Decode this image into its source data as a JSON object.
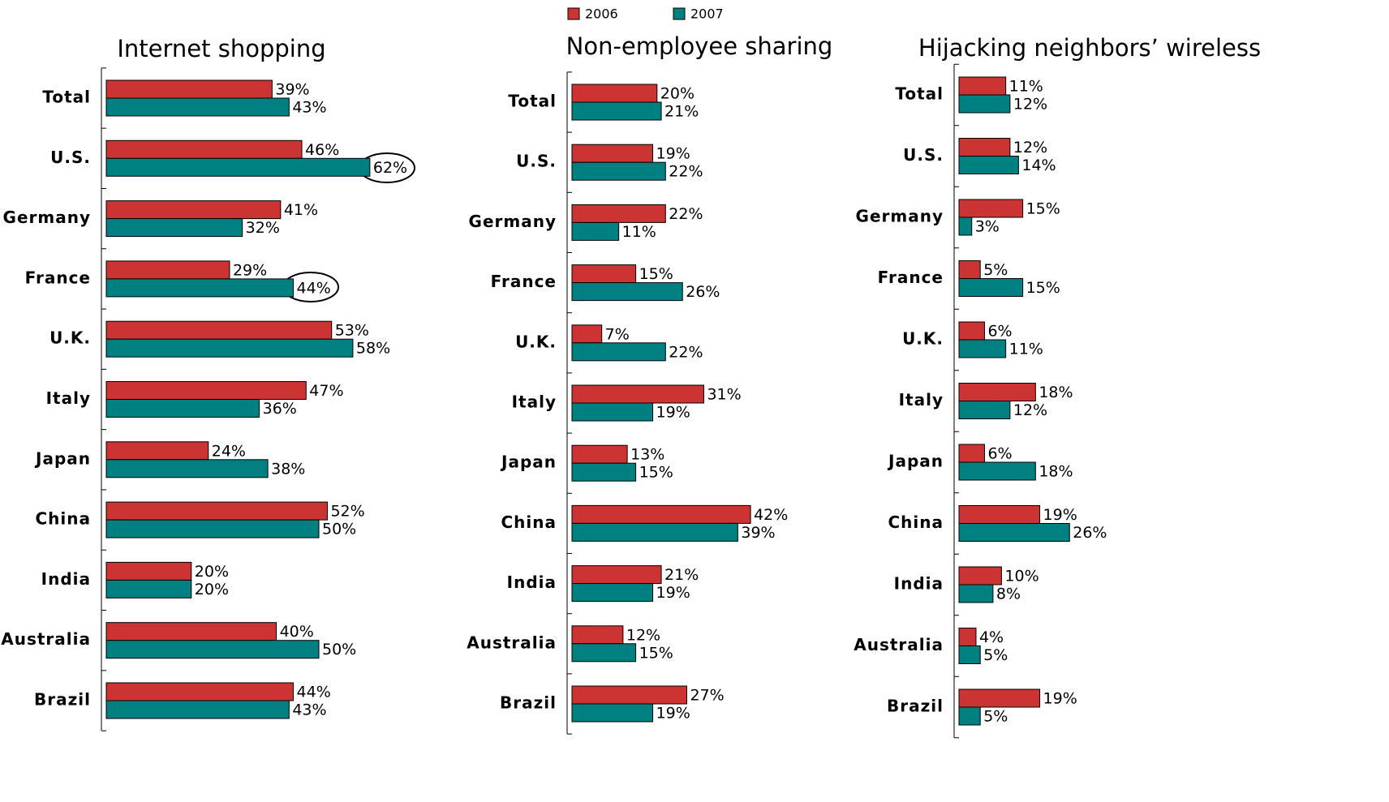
{
  "chart_data": [
    {
      "type": "bar",
      "orientation": "horizontal",
      "title": "Internet shopping",
      "categories": [
        "Total",
        "U.S.",
        "Germany",
        "France",
        "U.K.",
        "Italy",
        "Japan",
        "China",
        "India",
        "Australia",
        "Brazil"
      ],
      "series": [
        {
          "name": "2006",
          "color": "#cc3333",
          "values": [
            39,
            46,
            41,
            29,
            53,
            47,
            24,
            52,
            20,
            40,
            44
          ],
          "value_labels": [
            "39%",
            "46%",
            "41%",
            "29%",
            "53%",
            "47%",
            "24%",
            "52%",
            "20%",
            "40%",
            "44%"
          ]
        },
        {
          "name": "2007",
          "color": "#008080",
          "values": [
            43,
            62,
            32,
            44,
            58,
            36,
            38,
            50,
            20,
            50,
            43
          ],
          "value_labels": [
            "43%",
            "62%",
            "32%",
            "44%",
            "58%",
            "36%",
            "38%",
            "50%",
            "20%",
            "50%",
            "43%"
          ]
        }
      ]
    },
    {
      "type": "bar",
      "orientation": "horizontal",
      "title": "Non-employee sharing",
      "categories": [
        "Total",
        "U.S.",
        "Germany",
        "France",
        "U.K.",
        "Italy",
        "Japan",
        "China",
        "India",
        "Australia",
        "Brazil"
      ],
      "series": [
        {
          "color": "#cc3333",
          "values": [
            20,
            19,
            22,
            15,
            7,
            31,
            13,
            42,
            21,
            12,
            27
          ],
          "value_labels": [
            "20%",
            "19%",
            "22%",
            "15%",
            "7%",
            "31%",
            "13%",
            "42%",
            "21%",
            "12%",
            "27%"
          ]
        },
        {
          "color": "#008080",
          "values": [
            21,
            22,
            11,
            26,
            22,
            19,
            15,
            39,
            19,
            15,
            19
          ],
          "value_labels": [
            "21%",
            "22%",
            "11%",
            "26%",
            "22%",
            "19%",
            "15%",
            "39%",
            "19%",
            "15%",
            "19%"
          ]
        }
      ]
    },
    {
      "type": "bar",
      "orientation": "horizontal",
      "title": "Hijacking neighbors’ wireless",
      "categories": [
        "Total",
        "U.S.",
        "Germany",
        "France",
        "U.K.",
        "Italy",
        "Japan",
        "China",
        "India",
        "Australia",
        "Brazil"
      ],
      "series": [
        {
          "color": "#cc3333",
          "values": [
            11,
            12,
            15,
            5,
            6,
            18,
            6,
            19,
            10,
            4,
            19
          ],
          "value_labels": [
            "11%",
            "12%",
            "15%",
            "5%",
            "6%",
            "18%",
            "6%",
            "19%",
            "10%",
            "4%",
            "19%"
          ]
        },
        {
          "color": "#008080",
          "values": [
            12,
            14,
            3,
            15,
            11,
            12,
            18,
            26,
            8,
            5,
            5
          ],
          "value_labels": [
            "12%",
            "14%",
            "3%",
            "15%",
            "11%",
            "12%",
            "18%",
            "26%",
            "8%",
            "5%",
            "5%"
          ]
        }
      ]
    }
  ]
}
